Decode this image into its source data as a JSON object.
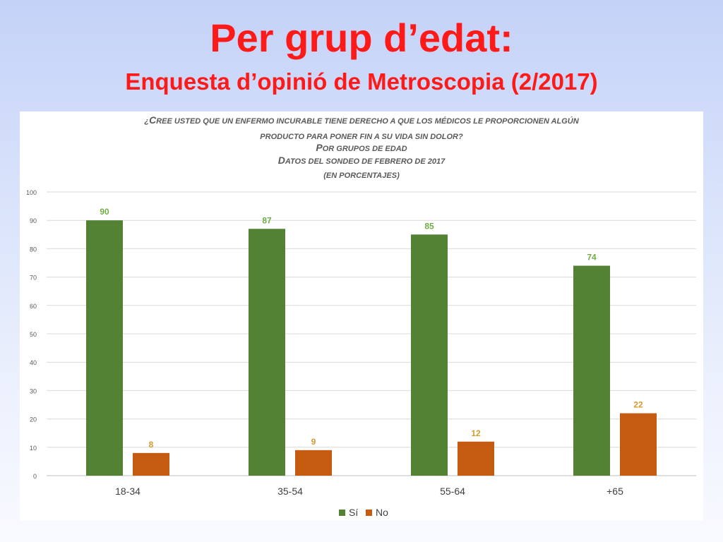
{
  "slide": {
    "title": "Per grup d’edat:",
    "subtitle": "Enquesta d’opinió de Metroscopia (2/2017)"
  },
  "chart_data": {
    "type": "bar",
    "title_lines": [
      "¿Cree usted que un enfermo incurable tiene derecho a que los médicos le proporcionen algún",
      "producto para poner fin a su vida sin dolor?",
      "Por grupos de edad",
      "Datos del sondeo de febrero de 2017",
      "(en porcentajes)"
    ],
    "categories": [
      "18-34",
      "35-54",
      "55-64",
      "+65"
    ],
    "series": [
      {
        "name": "Sí",
        "color": "#548235",
        "label_color": "#70ad47",
        "values": [
          90,
          87,
          85,
          74
        ]
      },
      {
        "name": "No",
        "color": "#c55a11",
        "label_color": "#d69a2d",
        "values": [
          8,
          9,
          12,
          22
        ]
      }
    ],
    "ylim": [
      0,
      100
    ],
    "yticks": [
      0,
      10,
      20,
      30,
      40,
      50,
      60,
      70,
      80,
      90,
      100
    ],
    "grid": true,
    "legend_position": "bottom",
    "xlabel": "",
    "ylabel": ""
  }
}
